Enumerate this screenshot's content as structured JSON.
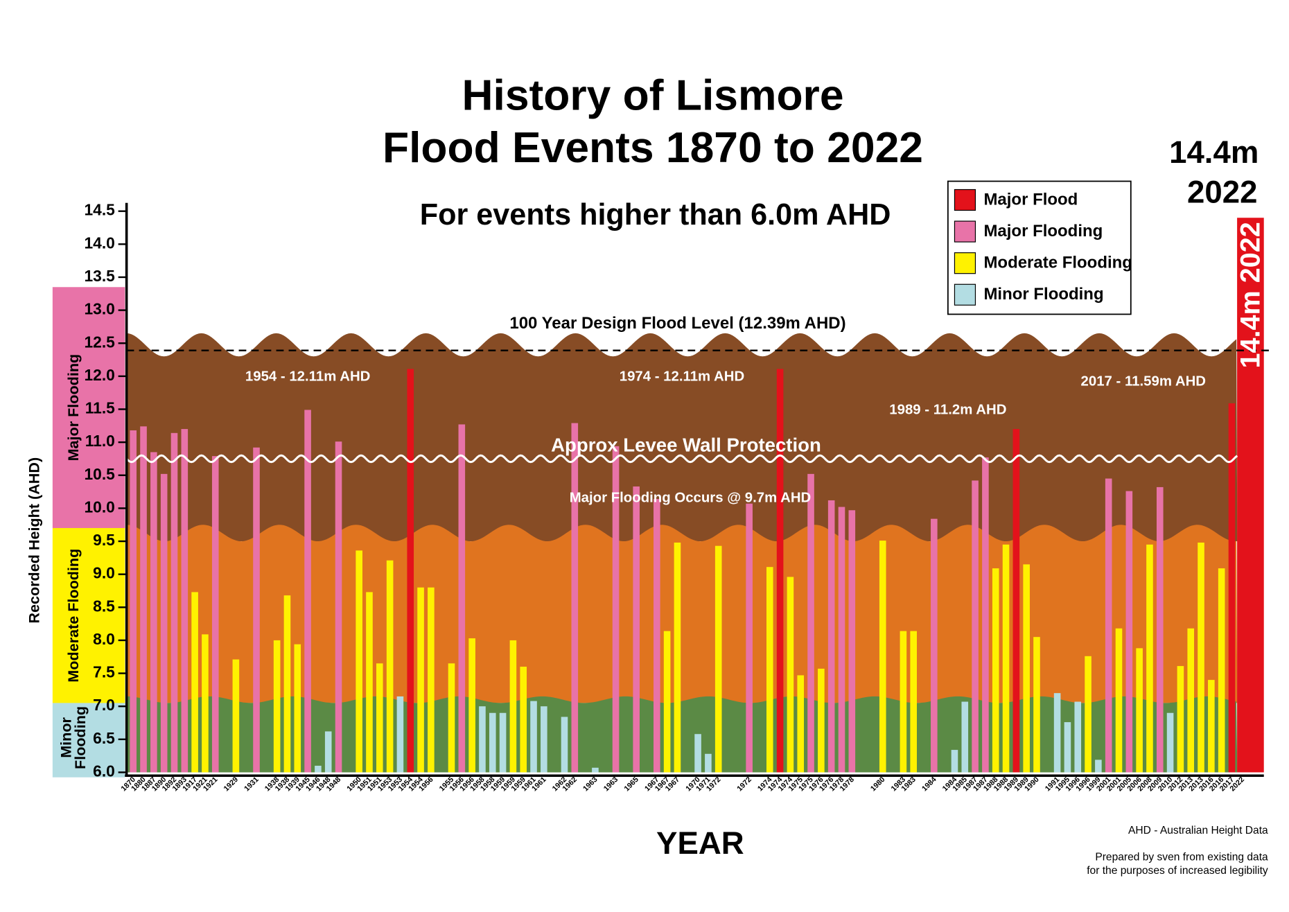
{
  "chart_data": {
    "type": "bar",
    "title_lines": [
      "History of Lismore",
      "Flood Events 1870 to 2022"
    ],
    "subtitle": "For events higher than 6.0m AHD",
    "record_lines": [
      "14.4m",
      "2022"
    ],
    "bar_label": "14.4m 2022",
    "x_label": "YEAR",
    "y_label": "Recorded Height (AHD)",
    "footnotes": [
      "AHD - Australian Height Data",
      "Prepared by sven from existing data",
      "for the purposes of increased legibility"
    ],
    "annotations": [
      "1954 - 12.11m AHD",
      "1974 - 12.11m AHD",
      "1989 - 11.2m AHD",
      "2017 - 11.59m AHD",
      "Major  Flooding Occurs  @ 9.7m AHD"
    ],
    "design_level": {
      "value": 12.39,
      "label": "100 Year Design Flood Level (12.39m AHD)"
    },
    "levee": {
      "value": 10.75,
      "label": "Approx Levee Wall Protection"
    },
    "zones": [
      {
        "label_lines": [
          "Major Flooding"
        ],
        "from": 9.7,
        "to": 13.35,
        "color": "#e873a8"
      },
      {
        "label_lines": [
          "Moderate Flooding"
        ],
        "from": 7.05,
        "to": 9.7,
        "color": "#fff200"
      },
      {
        "label_lines": [
          "Minor",
          "Flooding"
        ],
        "from": 6.0,
        "to": 7.05,
        "color": "#b3dde3"
      }
    ],
    "bands": [
      {
        "from": 6.0,
        "to": 7.15,
        "color": "#5b8a45"
      },
      {
        "from": 7.05,
        "to": 9.75,
        "color": "#e0741f"
      },
      {
        "from": 9.5,
        "to": 12.65,
        "color": "#874c25"
      }
    ],
    "categories": [
      "1870",
      "1880",
      "1887",
      "1890",
      "1892",
      "1893",
      "1917",
      "1921",
      "1921",
      null,
      "1929",
      null,
      "1931",
      null,
      "1938",
      "1938",
      "1939",
      "1945",
      "1946",
      "1948",
      "1948",
      null,
      "1950",
      "1951",
      "1951",
      "1953",
      "1953",
      "1954",
      "1954",
      "1956",
      null,
      "1955",
      "1956",
      "1956",
      "1958",
      "1958",
      "1959",
      "1959",
      "1959",
      "1961",
      "1961",
      null,
      "1962",
      "1962",
      null,
      "1963",
      null,
      "1963",
      null,
      "1965",
      null,
      "1967",
      "1967",
      "1967",
      null,
      "1970",
      "1971",
      "1972",
      null,
      null,
      "1972",
      null,
      "1974",
      "1974",
      "1974",
      "1975",
      "1975",
      "1976",
      "1976",
      "1978",
      "1978",
      null,
      null,
      "1980",
      null,
      "1983",
      "1983",
      null,
      "1984",
      null,
      "1984",
      "1985",
      "1987",
      "1987",
      "1988",
      "1988",
      "1989",
      "1989",
      "1990",
      null,
      "1991",
      "1995",
      "1996",
      "1996",
      "1999",
      "2001",
      "2001",
      "2005",
      "2006",
      "2008",
      "2009",
      "2010",
      "2012",
      "2013",
      "2013",
      "2016",
      "2016",
      "2017",
      "2022"
    ],
    "series": [
      {
        "name": "Major Flood",
        "color": "#e3121b",
        "values": [
          null,
          null,
          null,
          null,
          null,
          null,
          null,
          null,
          null,
          null,
          null,
          null,
          null,
          null,
          null,
          null,
          null,
          null,
          null,
          null,
          null,
          null,
          null,
          null,
          null,
          null,
          null,
          12.11,
          null,
          null,
          null,
          null,
          null,
          null,
          null,
          null,
          null,
          null,
          null,
          null,
          null,
          null,
          null,
          null,
          null,
          null,
          null,
          null,
          null,
          null,
          null,
          null,
          null,
          null,
          null,
          null,
          null,
          null,
          null,
          null,
          null,
          null,
          null,
          12.11,
          null,
          null,
          null,
          null,
          null,
          null,
          null,
          null,
          null,
          null,
          null,
          null,
          null,
          null,
          null,
          null,
          null,
          null,
          null,
          null,
          null,
          null,
          11.2,
          null,
          null,
          null,
          null,
          null,
          null,
          null,
          null,
          null,
          null,
          null,
          null,
          null,
          null,
          null,
          null,
          null,
          null,
          null,
          null,
          11.59,
          14.4
        ]
      },
      {
        "name": "Major Flooding",
        "color": "#e873a8",
        "values": [
          11.18,
          11.24,
          10.85,
          10.52,
          11.14,
          11.2,
          null,
          null,
          10.79,
          null,
          null,
          null,
          10.92,
          null,
          null,
          null,
          null,
          11.49,
          null,
          null,
          11.01,
          null,
          null,
          null,
          null,
          null,
          null,
          null,
          null,
          null,
          null,
          null,
          11.27,
          null,
          null,
          null,
          null,
          null,
          null,
          null,
          null,
          null,
          null,
          11.29,
          null,
          null,
          null,
          10.94,
          null,
          10.33,
          null,
          10.14,
          null,
          null,
          null,
          null,
          null,
          null,
          null,
          null,
          10.07,
          null,
          null,
          null,
          null,
          null,
          10.52,
          null,
          10.12,
          10.02,
          9.97,
          null,
          null,
          null,
          null,
          null,
          null,
          null,
          9.84,
          null,
          null,
          null,
          10.42,
          10.77,
          null,
          null,
          null,
          null,
          null,
          null,
          null,
          null,
          null,
          null,
          null,
          10.45,
          null,
          10.26,
          null,
          null,
          10.32,
          null,
          null,
          null,
          null,
          null,
          null,
          null,
          null
        ]
      },
      {
        "name": "Moderate Flooding",
        "color": "#fff200",
        "values": [
          null,
          null,
          null,
          null,
          null,
          null,
          8.73,
          8.09,
          null,
          null,
          7.71,
          null,
          null,
          null,
          8.0,
          8.68,
          7.94,
          null,
          null,
          null,
          null,
          null,
          9.36,
          8.73,
          7.65,
          9.21,
          null,
          null,
          8.8,
          8.8,
          null,
          7.65,
          null,
          8.03,
          null,
          null,
          null,
          8.0,
          7.6,
          null,
          null,
          null,
          null,
          null,
          null,
          null,
          null,
          null,
          null,
          null,
          null,
          null,
          8.14,
          9.48,
          null,
          null,
          null,
          9.43,
          null,
          null,
          null,
          null,
          9.11,
          null,
          8.96,
          7.47,
          null,
          7.57,
          null,
          null,
          null,
          null,
          null,
          9.51,
          null,
          8.14,
          8.14,
          null,
          null,
          null,
          null,
          null,
          null,
          null,
          9.09,
          9.45,
          null,
          9.15,
          8.05,
          null,
          null,
          null,
          null,
          7.76,
          null,
          null,
          8.18,
          null,
          7.88,
          9.45,
          null,
          null,
          7.61,
          8.18,
          9.48,
          7.4,
          9.09,
          null,
          null
        ]
      },
      {
        "name": "Minor Flooding",
        "color": "#b3dde3",
        "values": [
          null,
          null,
          null,
          null,
          null,
          null,
          null,
          null,
          null,
          null,
          null,
          null,
          null,
          null,
          null,
          null,
          null,
          null,
          6.1,
          6.62,
          null,
          null,
          null,
          null,
          null,
          null,
          7.15,
          null,
          null,
          null,
          null,
          null,
          null,
          null,
          7.0,
          6.9,
          6.9,
          null,
          null,
          7.08,
          7.0,
          null,
          6.84,
          null,
          null,
          6.07,
          null,
          null,
          null,
          null,
          null,
          null,
          null,
          null,
          null,
          6.58,
          6.28,
          null,
          null,
          null,
          null,
          null,
          null,
          null,
          null,
          null,
          null,
          null,
          null,
          null,
          null,
          null,
          null,
          null,
          null,
          null,
          null,
          null,
          null,
          null,
          6.34,
          7.07,
          null,
          null,
          null,
          null,
          null,
          null,
          null,
          null,
          7.2,
          6.76,
          7.07,
          null,
          6.19,
          null,
          null,
          null,
          null,
          null,
          null,
          6.9,
          null,
          null,
          null,
          null,
          null,
          null,
          null
        ]
      }
    ],
    "ylim": [
      6.0,
      14.5
    ],
    "yticks": [
      {
        "value": 6.0,
        "label": "6.0"
      },
      6.5,
      {
        "value": 7.0,
        "label": "7.0"
      },
      7.5,
      {
        "value": 8.0,
        "label": "8.0"
      },
      8.5,
      {
        "value": 9.0,
        "label": "9.0"
      },
      9.5,
      {
        "value": 10.0,
        "label": "10.0"
      },
      10.5,
      {
        "value": 11.0,
        "label": "11.0"
      },
      11.5,
      {
        "value": 12.0,
        "label": "12.0"
      },
      12.5,
      {
        "value": 13.0,
        "label": "13.0"
      },
      13.5,
      {
        "value": 14.0,
        "label": "14.0"
      },
      14.5
    ],
    "legend": "top-right"
  }
}
